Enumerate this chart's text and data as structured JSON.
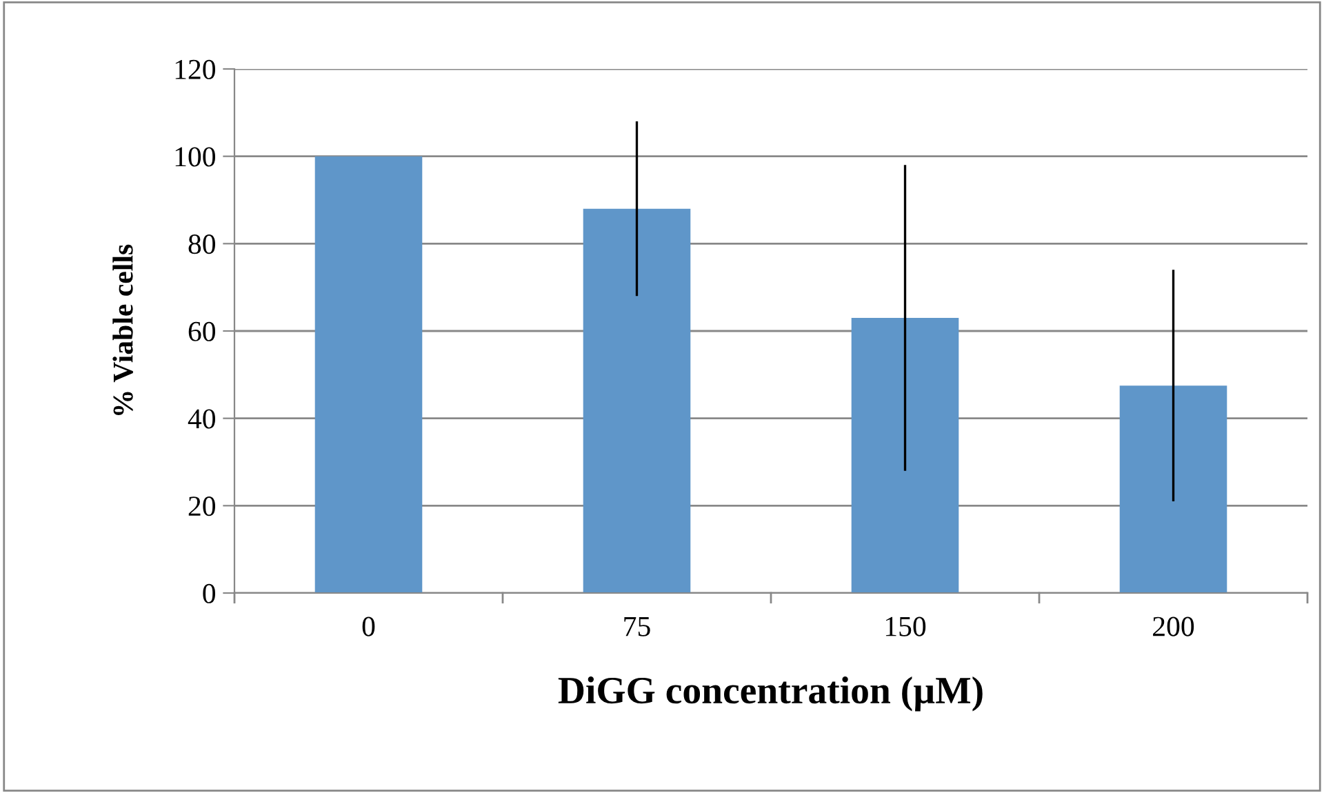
{
  "chart_data": {
    "type": "bar",
    "xlabel": "DiGG concentration (µM)",
    "ylabel": "% Viable cells",
    "categories": [
      "0",
      "75",
      "150",
      "200"
    ],
    "values": [
      100,
      88,
      63,
      47.5
    ],
    "errors": [
      null,
      20,
      35,
      26.5
    ],
    "color": "#5f96c9",
    "ylim": [
      0,
      120
    ],
    "yticks": [
      0,
      20,
      40,
      60,
      80,
      100,
      120
    ],
    "grid": "y"
  }
}
